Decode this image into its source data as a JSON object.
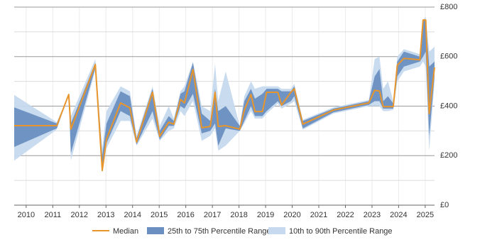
{
  "chart_data": {
    "type": "line",
    "x": [
      2009.55,
      2011.15,
      2011.6,
      2011.68,
      2012.6,
      2012.86,
      2013.02,
      2013.55,
      2013.9,
      2014.15,
      2014.75,
      2015.02,
      2015.36,
      2015.55,
      2015.8,
      2015.95,
      2016.27,
      2016.6,
      2016.92,
      2017.1,
      2017.22,
      2017.5,
      2018.03,
      2018.2,
      2018.45,
      2018.6,
      2018.88,
      2019.04,
      2019.46,
      2019.6,
      2019.95,
      2020.08,
      2020.4,
      2021.55,
      2022.88,
      2023.1,
      2023.28,
      2023.42,
      2023.6,
      2023.8,
      2023.95,
      2024.2,
      2024.8,
      2024.92,
      2025.02,
      2025.15,
      2025.35
    ],
    "series": [
      {
        "name": "10th to 90th Percentile Range",
        "color": "#c6d9ee",
        "low": [
          180,
          305,
          447,
          180,
          545,
          130,
          230,
          340,
          340,
          240,
          350,
          260,
          300,
          310,
          380,
          360,
          420,
          260,
          280,
          310,
          220,
          240,
          300,
          330,
          380,
          350,
          350,
          370,
          410,
          390,
          410,
          420,
          305,
          370,
          400,
          400,
          400,
          380,
          380,
          385,
          500,
          540,
          560,
          580,
          560,
          220,
          500
        ],
        "high": [
          445,
          335,
          447,
          360,
          590,
          230,
          380,
          480,
          460,
          280,
          480,
          320,
          400,
          350,
          460,
          480,
          580,
          400,
          380,
          570,
          420,
          540,
          320,
          440,
          500,
          470,
          480,
          480,
          480,
          470,
          470,
          490,
          345,
          395,
          425,
          590,
          600,
          470,
          500,
          420,
          600,
          630,
          610,
          750,
          760,
          620,
          640
        ]
      },
      {
        "name": "25th to 75th Percentile Range",
        "color": "#6a8fc0",
        "low": [
          235,
          310,
          447,
          210,
          555,
          150,
          250,
          380,
          360,
          245,
          380,
          265,
          320,
          320,
          400,
          390,
          450,
          290,
          300,
          330,
          240,
          310,
          300,
          340,
          400,
          360,
          360,
          380,
          420,
          400,
          420,
          440,
          310,
          375,
          405,
          420,
          420,
          390,
          390,
          390,
          520,
          560,
          580,
          600,
          620,
          280,
          520
        ],
        "high": [
          395,
          330,
          447,
          330,
          575,
          200,
          330,
          460,
          440,
          270,
          470,
          300,
          360,
          340,
          450,
          460,
          575,
          370,
          340,
          470,
          380,
          400,
          320,
          420,
          470,
          430,
          450,
          470,
          470,
          460,
          460,
          480,
          340,
          390,
          420,
          520,
          550,
          420,
          440,
          410,
          580,
          620,
          600,
          750,
          750,
          560,
          580
        ]
      },
      {
        "name": "Median",
        "color": "#e8962c",
        "values": [
          321,
          321,
          447,
          307,
          568,
          140,
          267,
          413,
          393,
          255,
          456,
          278,
          335,
          327,
          427,
          413,
          548,
          313,
          318,
          456,
          318,
          321,
          307,
          384,
          447,
          378,
          378,
          456,
          456,
          404,
          456,
          470,
          327,
          384,
          413,
          464,
          461,
          398,
          398,
          398,
          565,
          593,
          587,
          748,
          748,
          370,
          556
        ]
      }
    ],
    "xlim": [
      2009.55,
      2025.35
    ],
    "xticks": [
      2010,
      2011,
      2012,
      2013,
      2014,
      2015,
      2016,
      2017,
      2018,
      2019,
      2020,
      2021,
      2022,
      2023,
      2024,
      2025
    ],
    "ylim": [
      0,
      800
    ],
    "yticks": [
      {
        "value": 0,
        "label": "£0"
      },
      {
        "value": 200,
        "label": "£200"
      },
      {
        "value": 400,
        "label": "£400"
      },
      {
        "value": 600,
        "label": "£600"
      },
      {
        "value": 800,
        "label": "£800"
      }
    ],
    "minor_yticks": [
      100,
      300,
      500,
      700
    ],
    "grid": true
  }
}
